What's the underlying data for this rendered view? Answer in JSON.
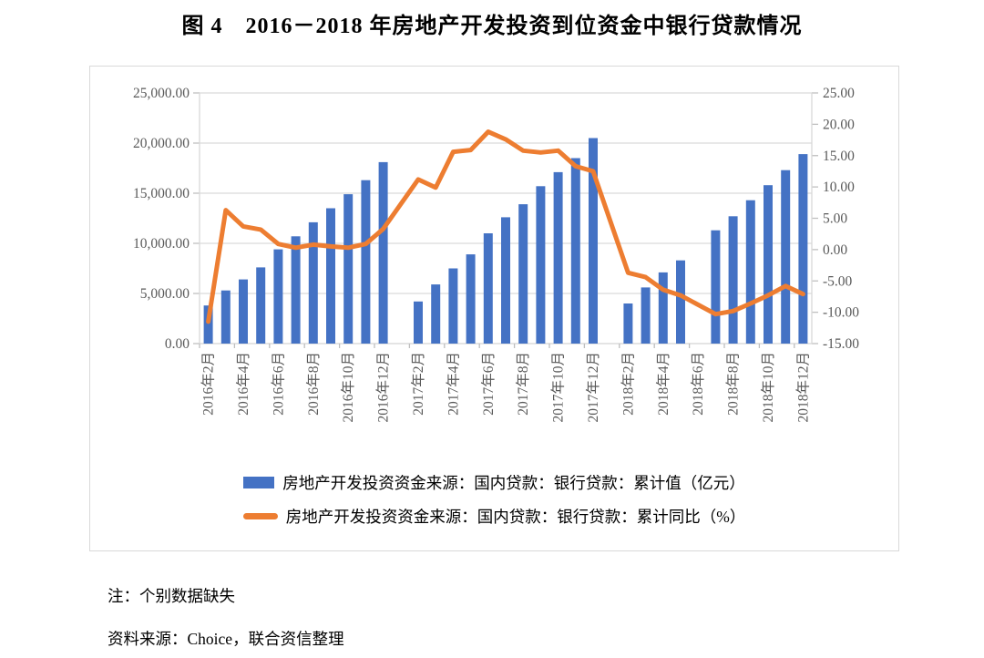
{
  "title": "图 4　2016－2018 年房地产开发投资到位资金中银行贷款情况",
  "notes": {
    "note": "注：个别数据缺失",
    "source": "资料来源：Choice，联合资信整理"
  },
  "colors": {
    "bar": "#4472C4",
    "line": "#ED7D31",
    "grid": "#D9D9D9",
    "tick": "#BFBFBF",
    "axis_text": "#595959"
  },
  "chart_data": {
    "type": "bar",
    "subtype": "combo bar+line, dual axis",
    "grid": "horizontal only",
    "legend_position": "bottom",
    "categories": [
      "2016年2月",
      "2016年3月",
      "2016年4月",
      "2016年5月",
      "2016年6月",
      "2016年7月",
      "2016年8月",
      "2016年9月",
      "2016年10月",
      "2016年11月",
      "2016年12月",
      "2017年1月",
      "2017年2月",
      "2017年3月",
      "2017年4月",
      "2017年5月",
      "2017年6月",
      "2017年7月",
      "2017年8月",
      "2017年9月",
      "2017年10月",
      "2017年11月",
      "2017年12月",
      "2018年1月",
      "2018年2月",
      "2018年3月",
      "2018年4月",
      "2018年5月",
      "2018年6月",
      "2018年7月",
      "2018年8月",
      "2018年9月",
      "2018年10月",
      "2018年11月",
      "2018年12月"
    ],
    "x_tick_labels": [
      "2016年2月",
      "2016年4月",
      "2016年6月",
      "2016年8月",
      "2016年10月",
      "2016年12月",
      "2017年2月",
      "2017年4月",
      "2017年6月",
      "2017年8月",
      "2017年10月",
      "2017年12月",
      "2018年2月",
      "2018年4月",
      "2018年6月",
      "2018年8月",
      "2018年10月",
      "2018年12月"
    ],
    "series": [
      {
        "name": "房地产开发投资资金来源：国内贷款：银行贷款：累计值（亿元）",
        "type": "bar",
        "axis": "left",
        "color": "#4472C4",
        "values": [
          3800,
          5300,
          6400,
          7600,
          9400,
          10700,
          12100,
          13500,
          14900,
          16300,
          18100,
          null,
          4200,
          5900,
          7500,
          8900,
          11000,
          12600,
          13900,
          15700,
          17100,
          18500,
          20500,
          null,
          4000,
          5600,
          7100,
          8300,
          null,
          11300,
          12700,
          14300,
          15800,
          17300,
          18900
        ]
      },
      {
        "name": "房地产开发投资资金来源：国内贷款：银行贷款：累计同比（%）",
        "type": "line",
        "axis": "right",
        "color": "#ED7D31",
        "values": [
          -11.5,
          6.3,
          3.7,
          3.2,
          0.9,
          0.3,
          0.8,
          0.5,
          0.3,
          0.9,
          3.3,
          null,
          11.2,
          9.9,
          15.6,
          15.9,
          18.8,
          17.6,
          15.8,
          15.5,
          15.8,
          13.3,
          12.5,
          null,
          -3.7,
          -4.4,
          -6.4,
          -7.3,
          null,
          -10.3,
          -9.8,
          -8.6,
          -7.3,
          -5.8,
          -7.1
        ]
      }
    ],
    "left_axis": {
      "min": 0,
      "max": 25000,
      "step": 5000,
      "tick_labels": [
        "0.00",
        "5,000.00",
        "10,000.00",
        "15,000.00",
        "20,000.00",
        "25,000.00"
      ]
    },
    "right_axis": {
      "min": -15,
      "max": 25,
      "step": 5,
      "tick_labels": [
        "-15.00",
        "-10.00",
        "-5.00",
        "0.00",
        "5.00",
        "10.00",
        "15.00",
        "20.00",
        "25.00"
      ]
    },
    "missing_data_slots": [
      "2017年1月",
      "2018年1月",
      "2018年6月"
    ]
  }
}
